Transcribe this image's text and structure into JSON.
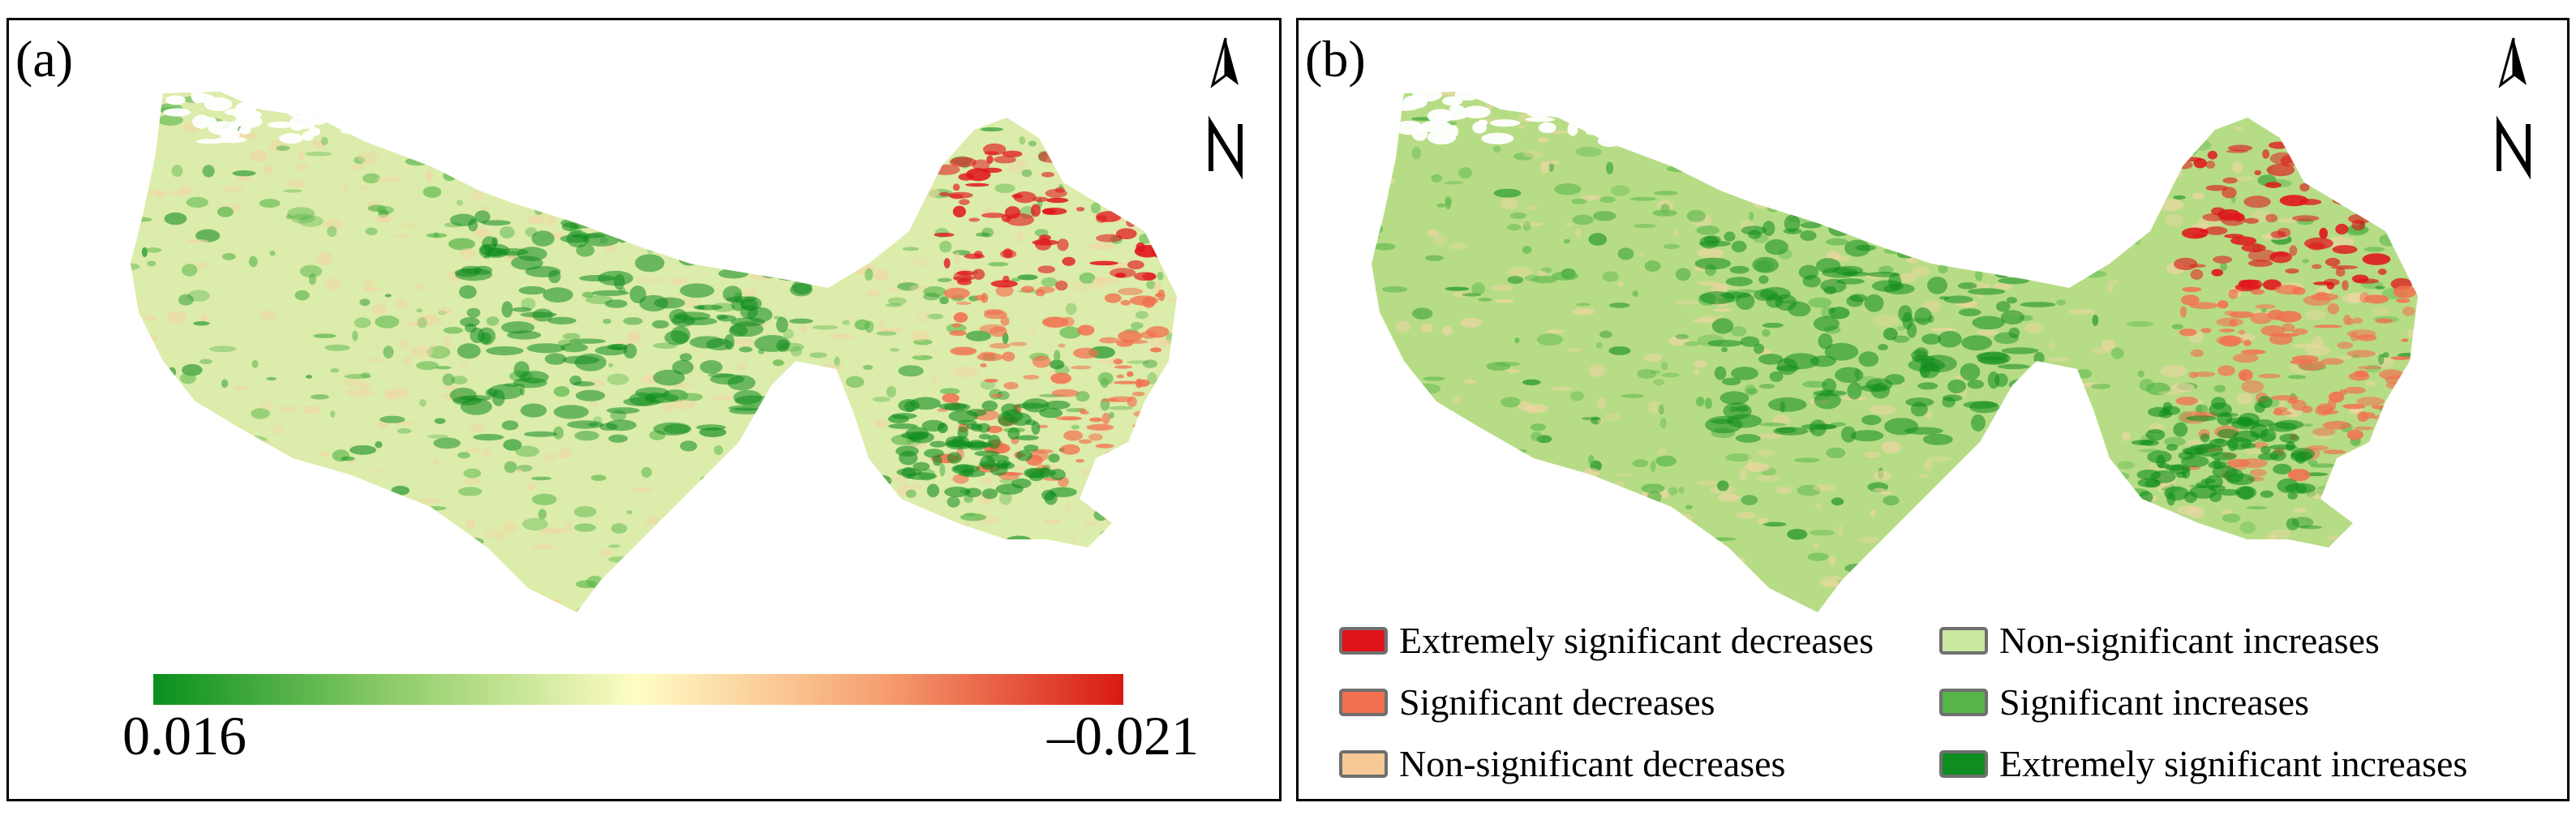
{
  "panel_a": {
    "label": "(a)",
    "colorbar": {
      "min_label": "0.016",
      "max_label": "–0.021",
      "colors": [
        "#0a8f1e",
        "#8fcd6a",
        "#fffdc4",
        "#f6a072",
        "#d81a12"
      ]
    }
  },
  "panel_b": {
    "label": "(b)",
    "legend": [
      {
        "label": "Extremely significant decreases",
        "color": "#e0141b"
      },
      {
        "label": "Non-significant increases",
        "color": "#cbe89f"
      },
      {
        "label": "Significant decreases",
        "color": "#f2704f"
      },
      {
        "label": "Significant increases",
        "color": "#55b548"
      },
      {
        "label": "Non-significant decreases",
        "color": "#f7c995"
      },
      {
        "label": "Extremely significant increases",
        "color": "#0f8d1e"
      }
    ]
  },
  "map_colors": {
    "base_a": "#dcecaa",
    "base_b": "#b7dc86",
    "peach": "#f2d6a4",
    "green": "#55b548",
    "dark_green": "#0f8d1e",
    "red": "#e0141b",
    "orange": "#f2704f"
  }
}
